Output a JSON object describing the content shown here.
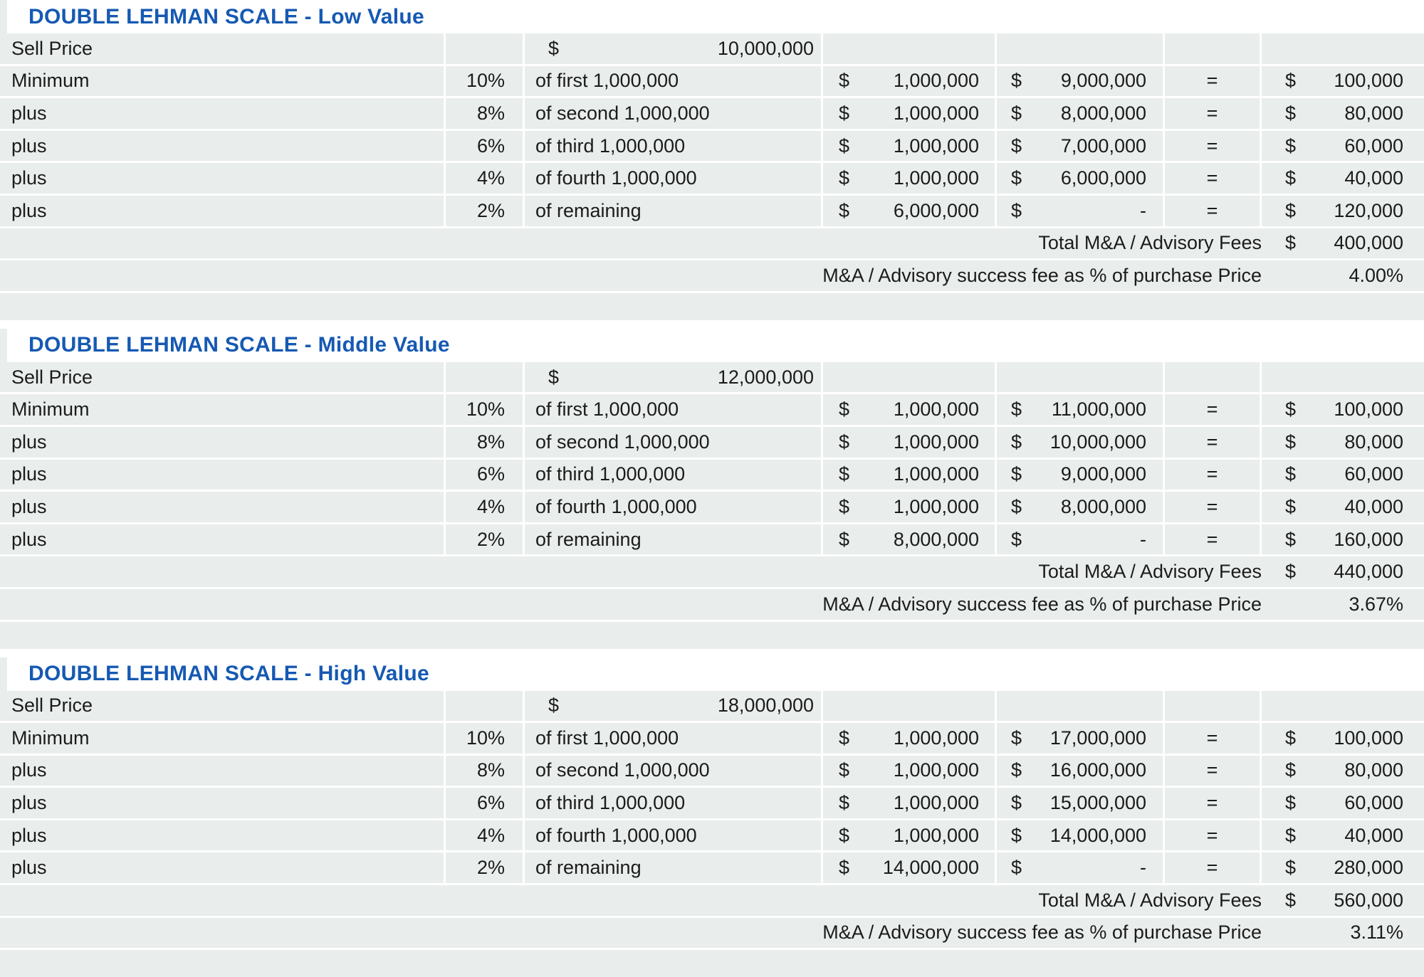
{
  "colors": {
    "accent_blue": "#1559b3",
    "row_gray": "#e9edec",
    "text": "#1b1b1b",
    "background": "#ffffff"
  },
  "tables": [
    {
      "title": "DOUBLE LEHMAN SCALE - Low Value",
      "sell_price_label": "Sell Price",
      "sell_price_currency": "$",
      "sell_price_value": "10,000,000",
      "rows": [
        {
          "label": "Minimum",
          "pct": "10%",
          "desc": "of first 1,000,000",
          "amt1_cur": "$",
          "amt1": "1,000,000",
          "amt2_cur": "$",
          "amt2": "9,000,000",
          "eq": "=",
          "fee_cur": "$",
          "fee": "100,000"
        },
        {
          "label": "plus",
          "pct": "8%",
          "desc": "of second 1,000,000",
          "amt1_cur": "$",
          "amt1": "1,000,000",
          "amt2_cur": "$",
          "amt2": "8,000,000",
          "eq": "=",
          "fee_cur": "$",
          "fee": "80,000"
        },
        {
          "label": "plus",
          "pct": "6%",
          "desc": "of third 1,000,000",
          "amt1_cur": "$",
          "amt1": "1,000,000",
          "amt2_cur": "$",
          "amt2": "7,000,000",
          "eq": "=",
          "fee_cur": "$",
          "fee": "60,000"
        },
        {
          "label": "plus",
          "pct": "4%",
          "desc": "of fourth 1,000,000",
          "amt1_cur": "$",
          "amt1": "1,000,000",
          "amt2_cur": "$",
          "amt2": "6,000,000",
          "eq": "=",
          "fee_cur": "$",
          "fee": "40,000"
        },
        {
          "label": "plus",
          "pct": "2%",
          "desc": "of remaining",
          "amt1_cur": "$",
          "amt1": "6,000,000",
          "amt2_cur": "$",
          "amt2": "-",
          "eq": "=",
          "fee_cur": "$",
          "fee": "120,000"
        }
      ],
      "total_label": "Total M&A / Advisory Fees",
      "total_currency": "$",
      "total_value": "400,000",
      "success_label": "M&A / Advisory success fee as % of purchase Price",
      "success_value": "4.00%"
    },
    {
      "title": "DOUBLE LEHMAN SCALE - Middle Value",
      "sell_price_label": "Sell Price",
      "sell_price_currency": "$",
      "sell_price_value": "12,000,000",
      "rows": [
        {
          "label": "Minimum",
          "pct": "10%",
          "desc": "of first 1,000,000",
          "amt1_cur": "$",
          "amt1": "1,000,000",
          "amt2_cur": "$",
          "amt2": "11,000,000",
          "eq": "=",
          "fee_cur": "$",
          "fee": "100,000"
        },
        {
          "label": "plus",
          "pct": "8%",
          "desc": "of second 1,000,000",
          "amt1_cur": "$",
          "amt1": "1,000,000",
          "amt2_cur": "$",
          "amt2": "10,000,000",
          "eq": "=",
          "fee_cur": "$",
          "fee": "80,000"
        },
        {
          "label": "plus",
          "pct": "6%",
          "desc": "of third 1,000,000",
          "amt1_cur": "$",
          "amt1": "1,000,000",
          "amt2_cur": "$",
          "amt2": "9,000,000",
          "eq": "=",
          "fee_cur": "$",
          "fee": "60,000"
        },
        {
          "label": "plus",
          "pct": "4%",
          "desc": "of fourth 1,000,000",
          "amt1_cur": "$",
          "amt1": "1,000,000",
          "amt2_cur": "$",
          "amt2": "8,000,000",
          "eq": "=",
          "fee_cur": "$",
          "fee": "40,000"
        },
        {
          "label": "plus",
          "pct": "2%",
          "desc": "of remaining",
          "amt1_cur": "$",
          "amt1": "8,000,000",
          "amt2_cur": "$",
          "amt2": "-",
          "eq": "=",
          "fee_cur": "$",
          "fee": "160,000"
        }
      ],
      "total_label": "Total M&A / Advisory Fees",
      "total_currency": "$",
      "total_value": "440,000",
      "success_label": "M&A / Advisory success fee as % of purchase Price",
      "success_value": "3.67%"
    },
    {
      "title": "DOUBLE LEHMAN SCALE - High Value",
      "sell_price_label": "Sell Price",
      "sell_price_currency": "$",
      "sell_price_value": "18,000,000",
      "rows": [
        {
          "label": "Minimum",
          "pct": "10%",
          "desc": "of first 1,000,000",
          "amt1_cur": "$",
          "amt1": "1,000,000",
          "amt2_cur": "$",
          "amt2": "17,000,000",
          "eq": "=",
          "fee_cur": "$",
          "fee": "100,000"
        },
        {
          "label": "plus",
          "pct": "8%",
          "desc": "of second 1,000,000",
          "amt1_cur": "$",
          "amt1": "1,000,000",
          "amt2_cur": "$",
          "amt2": "16,000,000",
          "eq": "=",
          "fee_cur": "$",
          "fee": "80,000"
        },
        {
          "label": "plus",
          "pct": "6%",
          "desc": "of third 1,000,000",
          "amt1_cur": "$",
          "amt1": "1,000,000",
          "amt2_cur": "$",
          "amt2": "15,000,000",
          "eq": "=",
          "fee_cur": "$",
          "fee": "60,000"
        },
        {
          "label": "plus",
          "pct": "4%",
          "desc": "of fourth 1,000,000",
          "amt1_cur": "$",
          "amt1": "1,000,000",
          "amt2_cur": "$",
          "amt2": "14,000,000",
          "eq": "=",
          "fee_cur": "$",
          "fee": "40,000"
        },
        {
          "label": "plus",
          "pct": "2%",
          "desc": "of remaining",
          "amt1_cur": "$",
          "amt1": "14,000,000",
          "amt2_cur": "$",
          "amt2": "-",
          "eq": "=",
          "fee_cur": "$",
          "fee": "280,000"
        }
      ],
      "total_label": "Total M&A / Advisory Fees",
      "total_currency": "$",
      "total_value": "560,000",
      "success_label": "M&A / Advisory success fee as % of purchase Price",
      "success_value": "3.11%"
    }
  ]
}
